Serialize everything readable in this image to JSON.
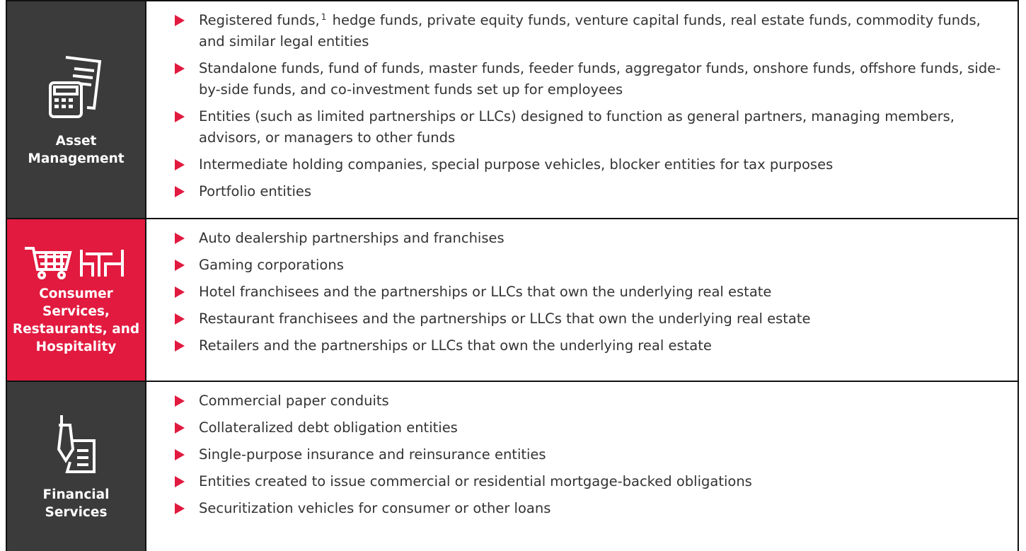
{
  "rows": [
    {
      "label": "Asset Management",
      "items": [
        {
          "before": "Registered funds,",
          "sup": "1",
          "after": " hedge funds, private equity funds, venture capital funds, real estate funds, commodity funds, and similar legal entities"
        },
        {
          "text": "Standalone funds, fund of funds, master funds, feeder funds, aggregator funds, onshore funds, offshore funds, side-by-side funds, and co-investment funds set up for employees"
        },
        {
          "text": "Entities (such as limited partnerships or LLCs) designed to function as general partners, managing members, advisors, or managers to other funds"
        },
        {
          "text": "Intermediate holding companies, special purpose vehicles, blocker entities for tax purposes"
        },
        {
          "text": "Portfolio entities"
        }
      ]
    },
    {
      "label": "Consumer Services, Restaurants, and Hospitality",
      "items": [
        {
          "text": "Auto dealership partnerships and franchises"
        },
        {
          "text": "Gaming corporations"
        },
        {
          "text": "Hotel franchisees and the partnerships or LLCs that own the underlying real estate"
        },
        {
          "text": "Restaurant franchisees and the partnerships or LLCs that own the underlying real estate"
        },
        {
          "text": "Retailers and the partnerships or LLCs that own the underlying real estate"
        }
      ]
    },
    {
      "label": "Financial Services",
      "items": [
        {
          "text": "Commercial paper conduits"
        },
        {
          "text": "Collateralized debt obligation entities"
        },
        {
          "text": "Single-purpose insurance and reinsurance entities"
        },
        {
          "text": "Entities created to issue commercial or residential mortgage-backed obligations"
        },
        {
          "text": "Securitization vehicles for consumer or other loans"
        }
      ]
    }
  ]
}
